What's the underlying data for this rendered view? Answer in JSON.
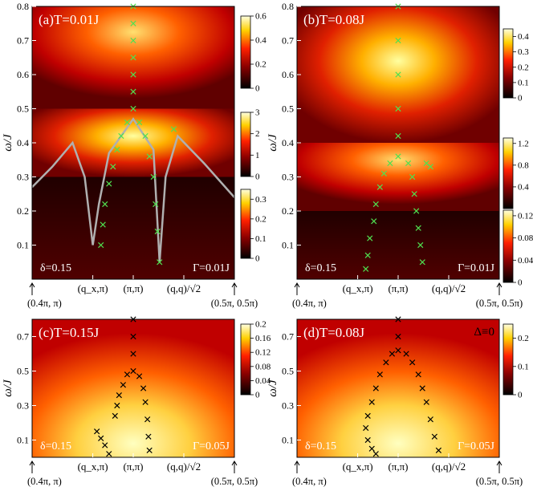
{
  "chart_data": [
    {
      "type": "heatmap",
      "label": "(a)",
      "title": "(a)T=0.01J",
      "temperature": "T=0.01J",
      "doping": "δ=0.15",
      "damping": "Γ=0.01J",
      "ylabel": "ω/J",
      "ylim": [
        0,
        0.8
      ],
      "y_ticks": [
        "0.1",
        "0.2",
        "0.3",
        "0.4",
        "0.5",
        "0.6",
        "0.7",
        "0.8"
      ],
      "x_ticks": [
        "(q_x,π)",
        "(π,π)",
        "(q,q)/√2"
      ],
      "x_endpoints": [
        "(0.4π, π)",
        "(0.5π, 0.5π)"
      ],
      "bands": [
        {
          "range": [
            0.5,
            0.8
          ],
          "colorbar": {
            "min": 0,
            "max": 0.6,
            "ticks": [
              "0",
              "0.2",
              "0.4",
              "0.6"
            ]
          }
        },
        {
          "range": [
            0.3,
            0.5
          ],
          "colorbar": {
            "min": 0,
            "max": 3,
            "ticks": [
              "0",
              "1",
              "2",
              "3"
            ]
          }
        },
        {
          "range": [
            0,
            0.3
          ],
          "colorbar": {
            "min": 0,
            "max": 0.35,
            "ticks": [
              "0",
              "0.1",
              "0.2",
              "0.3"
            ]
          }
        }
      ],
      "peak_marker": "green-cross",
      "overlay_curve": "gray",
      "cross_points": [
        [
          0.5,
          0.8
        ],
        [
          0.5,
          0.75
        ],
        [
          0.5,
          0.7
        ],
        [
          0.5,
          0.65
        ],
        [
          0.5,
          0.6
        ],
        [
          0.5,
          0.55
        ],
        [
          0.5,
          0.5
        ],
        [
          0.47,
          0.46
        ],
        [
          0.44,
          0.42
        ],
        [
          0.42,
          0.38
        ],
        [
          0.4,
          0.33
        ],
        [
          0.38,
          0.28
        ],
        [
          0.36,
          0.22
        ],
        [
          0.35,
          0.16
        ],
        [
          0.34,
          0.1
        ],
        [
          0.53,
          0.46
        ],
        [
          0.56,
          0.42
        ],
        [
          0.58,
          0.36
        ],
        [
          0.6,
          0.3
        ],
        [
          0.61,
          0.22
        ],
        [
          0.62,
          0.14
        ],
        [
          0.63,
          0.05
        ],
        [
          0.7,
          0.44
        ]
      ],
      "curve_points": [
        [
          0,
          0.27
        ],
        [
          0.1,
          0.33
        ],
        [
          0.2,
          0.4
        ],
        [
          0.26,
          0.3
        ],
        [
          0.3,
          0.1
        ],
        [
          0.33,
          0.22
        ],
        [
          0.38,
          0.37
        ],
        [
          0.5,
          0.47
        ],
        [
          0.6,
          0.38
        ],
        [
          0.63,
          0.05
        ],
        [
          0.66,
          0.3
        ],
        [
          0.72,
          0.42
        ],
        [
          0.85,
          0.34
        ],
        [
          1,
          0.24
        ]
      ]
    },
    {
      "type": "heatmap",
      "label": "(b)",
      "title": "(b)T=0.08J",
      "temperature": "T=0.08J",
      "doping": "δ=0.15",
      "damping": "Γ=0.01J",
      "ylabel": "ω/J",
      "ylim": [
        0,
        0.8
      ],
      "y_ticks": [
        "0.1",
        "0.2",
        "0.3",
        "0.4",
        "0.5",
        "0.6",
        "0.7",
        "0.8"
      ],
      "x_ticks": [
        "(q_x,π)",
        "(π,π)",
        "(q,q)/√2"
      ],
      "x_endpoints": [
        "(0.4π, π)",
        "(0.5π, 0.5π)"
      ],
      "bands": [
        {
          "range": [
            0.4,
            0.8
          ],
          "colorbar": {
            "min": 0,
            "max": 0.45,
            "ticks": [
              "0",
              "0.1",
              "0.2",
              "0.3",
              "0.4"
            ]
          }
        },
        {
          "range": [
            0.2,
            0.4
          ],
          "colorbar": {
            "min": 0,
            "max": 1.3,
            "ticks": [
              "0.4",
              "0.8",
              "1.2"
            ]
          }
        },
        {
          "range": [
            0,
            0.2
          ],
          "colorbar": {
            "min": 0,
            "max": 0.13,
            "ticks": [
              "0",
              "0.04",
              "0.08",
              "0.12"
            ]
          }
        }
      ],
      "peak_marker": "green-cross",
      "cross_points": [
        [
          0.5,
          0.8
        ],
        [
          0.5,
          0.7
        ],
        [
          0.5,
          0.6
        ],
        [
          0.5,
          0.5
        ],
        [
          0.5,
          0.42
        ],
        [
          0.5,
          0.36
        ],
        [
          0.46,
          0.34
        ],
        [
          0.43,
          0.31
        ],
        [
          0.41,
          0.27
        ],
        [
          0.39,
          0.22
        ],
        [
          0.38,
          0.17
        ],
        [
          0.36,
          0.12
        ],
        [
          0.35,
          0.07
        ],
        [
          0.34,
          0.03
        ],
        [
          0.55,
          0.34
        ],
        [
          0.57,
          0.3
        ],
        [
          0.58,
          0.25
        ],
        [
          0.59,
          0.2
        ],
        [
          0.6,
          0.15
        ],
        [
          0.61,
          0.1
        ],
        [
          0.62,
          0.05
        ],
        [
          0.64,
          0.34
        ],
        [
          0.66,
          0.33
        ]
      ]
    },
    {
      "type": "heatmap",
      "label": "(c)",
      "title": "(c)T=0.15J",
      "temperature": "T=0.15J",
      "doping": "δ=0.15",
      "damping": "Γ=0.05J",
      "ylabel": "ω/J",
      "ylim": [
        0,
        0.8
      ],
      "y_ticks": [
        "0.1",
        "0.3",
        "0.5",
        "0.7"
      ],
      "x_ticks": [
        "(q_x,π)",
        "(π,π)",
        "(q,q)/√2"
      ],
      "x_endpoints": [
        "(0.4π, π)",
        "(0.5π, 0.5π)"
      ],
      "bands": [
        {
          "range": [
            0,
            0.8
          ],
          "colorbar": {
            "min": 0,
            "max": 0.2,
            "ticks": [
              "0",
              "0.04",
              "0.08",
              "0.12",
              "0.16",
              "0.2"
            ]
          }
        }
      ],
      "peak_marker": "black-cross",
      "cross_points": [
        [
          0.5,
          0.8
        ],
        [
          0.5,
          0.7
        ],
        [
          0.5,
          0.6
        ],
        [
          0.5,
          0.5
        ],
        [
          0.47,
          0.48
        ],
        [
          0.45,
          0.42
        ],
        [
          0.43,
          0.36
        ],
        [
          0.42,
          0.3
        ],
        [
          0.41,
          0.24
        ],
        [
          0.53,
          0.47
        ],
        [
          0.55,
          0.4
        ],
        [
          0.56,
          0.32
        ],
        [
          0.57,
          0.22
        ],
        [
          0.575,
          0.12
        ],
        [
          0.58,
          0.04
        ],
        [
          0.32,
          0.15
        ],
        [
          0.34,
          0.11
        ],
        [
          0.36,
          0.07
        ],
        [
          0.38,
          0.02
        ]
      ]
    },
    {
      "type": "heatmap",
      "label": "(d)",
      "title": "(d)T=0.08J",
      "temperature": "T=0.08J",
      "gap_note": "Δ≡0",
      "doping": "δ=0.15",
      "damping": "Γ=0.05J",
      "ylabel": "ω/J",
      "ylim": [
        0,
        0.8
      ],
      "y_ticks": [
        "0.1",
        "0.3",
        "0.5",
        "0.7"
      ],
      "x_ticks": [
        "(q_x,π)",
        "(π,π)",
        "(q,q)/√2"
      ],
      "x_endpoints": [
        "(0.4π, π)",
        "(0.5π, 0.5π)"
      ],
      "bands": [
        {
          "range": [
            0,
            0.8
          ],
          "colorbar": {
            "min": 0,
            "max": 0.25,
            "ticks": [
              "0",
              "0.1",
              "0.2"
            ]
          }
        }
      ],
      "peak_marker": "black-cross",
      "cross_points": [
        [
          0.5,
          0.8
        ],
        [
          0.5,
          0.7
        ],
        [
          0.5,
          0.62
        ],
        [
          0.47,
          0.6
        ],
        [
          0.44,
          0.55
        ],
        [
          0.41,
          0.48
        ],
        [
          0.39,
          0.4
        ],
        [
          0.37,
          0.32
        ],
        [
          0.35,
          0.24
        ],
        [
          0.34,
          0.17
        ],
        [
          0.35,
          0.1
        ],
        [
          0.37,
          0.05
        ],
        [
          0.39,
          0.02
        ],
        [
          0.54,
          0.6
        ],
        [
          0.57,
          0.55
        ],
        [
          0.6,
          0.48
        ],
        [
          0.62,
          0.4
        ],
        [
          0.64,
          0.32
        ],
        [
          0.66,
          0.22
        ],
        [
          0.68,
          0.12
        ],
        [
          0.7,
          0.04
        ]
      ]
    }
  ]
}
